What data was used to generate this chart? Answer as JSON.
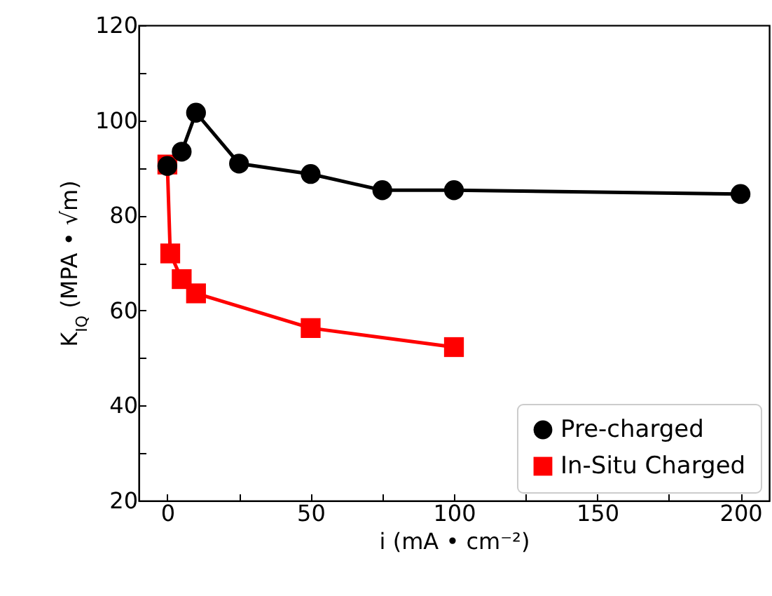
{
  "chart_data": {
    "type": "line",
    "xlabel": "i (mA • cm⁻²)",
    "ylabel": "K$_{IQ}$ (MPA • √m)",
    "xlim": [
      -10,
      210
    ],
    "xticks": [
      0,
      {
        "value": 25,
        "label": null
      },
      50,
      {
        "value": 75,
        "label": null
      },
      100,
      {
        "value": 125,
        "label": null
      },
      150,
      {
        "value": 175,
        "label": null
      },
      200
    ],
    "ylim": [
      20,
      120
    ],
    "yticks": [
      20,
      {
        "value": 30,
        "label": null
      },
      40,
      {
        "value": 50,
        "label": null
      },
      60,
      {
        "value": 70,
        "label": null
      },
      80,
      {
        "value": 90,
        "label": null
      },
      100,
      {
        "value": 110,
        "label": null
      },
      120
    ],
    "legend": "bottom right",
    "grid": false,
    "series": [
      {
        "name": "Pre-charged",
        "color": "#000000",
        "marker": "circle",
        "x": [
          0,
          5,
          10,
          25,
          50,
          75,
          100,
          200
        ],
        "values": [
          90.4,
          93.4,
          101.6,
          90.9,
          88.7,
          85.3,
          85.3,
          84.5
        ]
      },
      {
        "name": "In-Situ Charged",
        "color": "#ff0000",
        "marker": "square",
        "x": [
          0,
          1,
          5,
          10,
          50,
          100
        ],
        "values": [
          90.7,
          72.0,
          66.6,
          63.6,
          56.3,
          52.3
        ]
      }
    ]
  }
}
